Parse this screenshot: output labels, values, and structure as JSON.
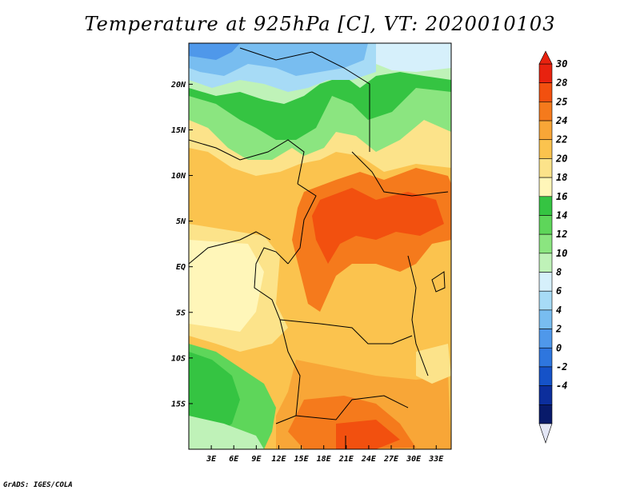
{
  "title": "Temperature at 925hPa [C], VT: 2020010103",
  "credit": "GrADS: IGES/COLA",
  "map": {
    "lon_labels": [
      "3E",
      "6E",
      "9E",
      "12E",
      "15E",
      "18E",
      "21E",
      "24E",
      "27E",
      "30E",
      "33E"
    ],
    "lat_labels": [
      "20N",
      "15N",
      "10N",
      "5N",
      "EQ",
      "5S",
      "10S",
      "15S"
    ],
    "lon_range": [
      0,
      35
    ],
    "lat_range": [
      -20,
      24.5
    ]
  },
  "colorbar": {
    "labels": [
      "30",
      "28",
      "25",
      "24",
      "22",
      "20",
      "18",
      "16",
      "14",
      "12",
      "10",
      "8",
      "6",
      "4",
      "2",
      "0",
      "-2",
      "-4"
    ],
    "colors": [
      "#e8220f",
      "#f2500f",
      "#f57a1c",
      "#f8a637",
      "#fbc34e",
      "#fce38a",
      "#fff6b9",
      "#35c442",
      "#5ed65a",
      "#8be580",
      "#bff2b8",
      "#d6f0fb",
      "#a7dbf6",
      "#78bdf0",
      "#4f98ea",
      "#2e76de",
      "#1552c8",
      "#0c2e9c",
      "#081a6a"
    ],
    "under_color": "#e3e6f5"
  }
}
